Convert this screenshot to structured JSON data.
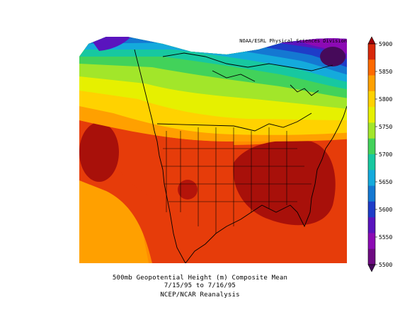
{
  "credit": "NOAA/ESRL Physical Sciences Division",
  "caption": {
    "line1": "500mb Geopotential Height (m) Composite Mean",
    "line2": "7/15/95  to 7/16/95",
    "line3": "NCEP/NCAR Reanalysis"
  },
  "colorbar": {
    "levels": [
      5900,
      5850,
      5800,
      5750,
      5700,
      5650,
      5600,
      5550,
      5500
    ],
    "colors": [
      "#a0000a",
      "#d8280a",
      "#ff6a00",
      "#ffa000",
      "#ffd200",
      "#e6f000",
      "#a2e62a",
      "#42d25a",
      "#17c8a0",
      "#14aadc",
      "#1478d2",
      "#1e3cc8",
      "#5a14be",
      "#8c0ab4",
      "#6e0a82",
      "#460a5a"
    ]
  },
  "icons": [
    "continental-outline",
    "state-boundaries"
  ]
}
